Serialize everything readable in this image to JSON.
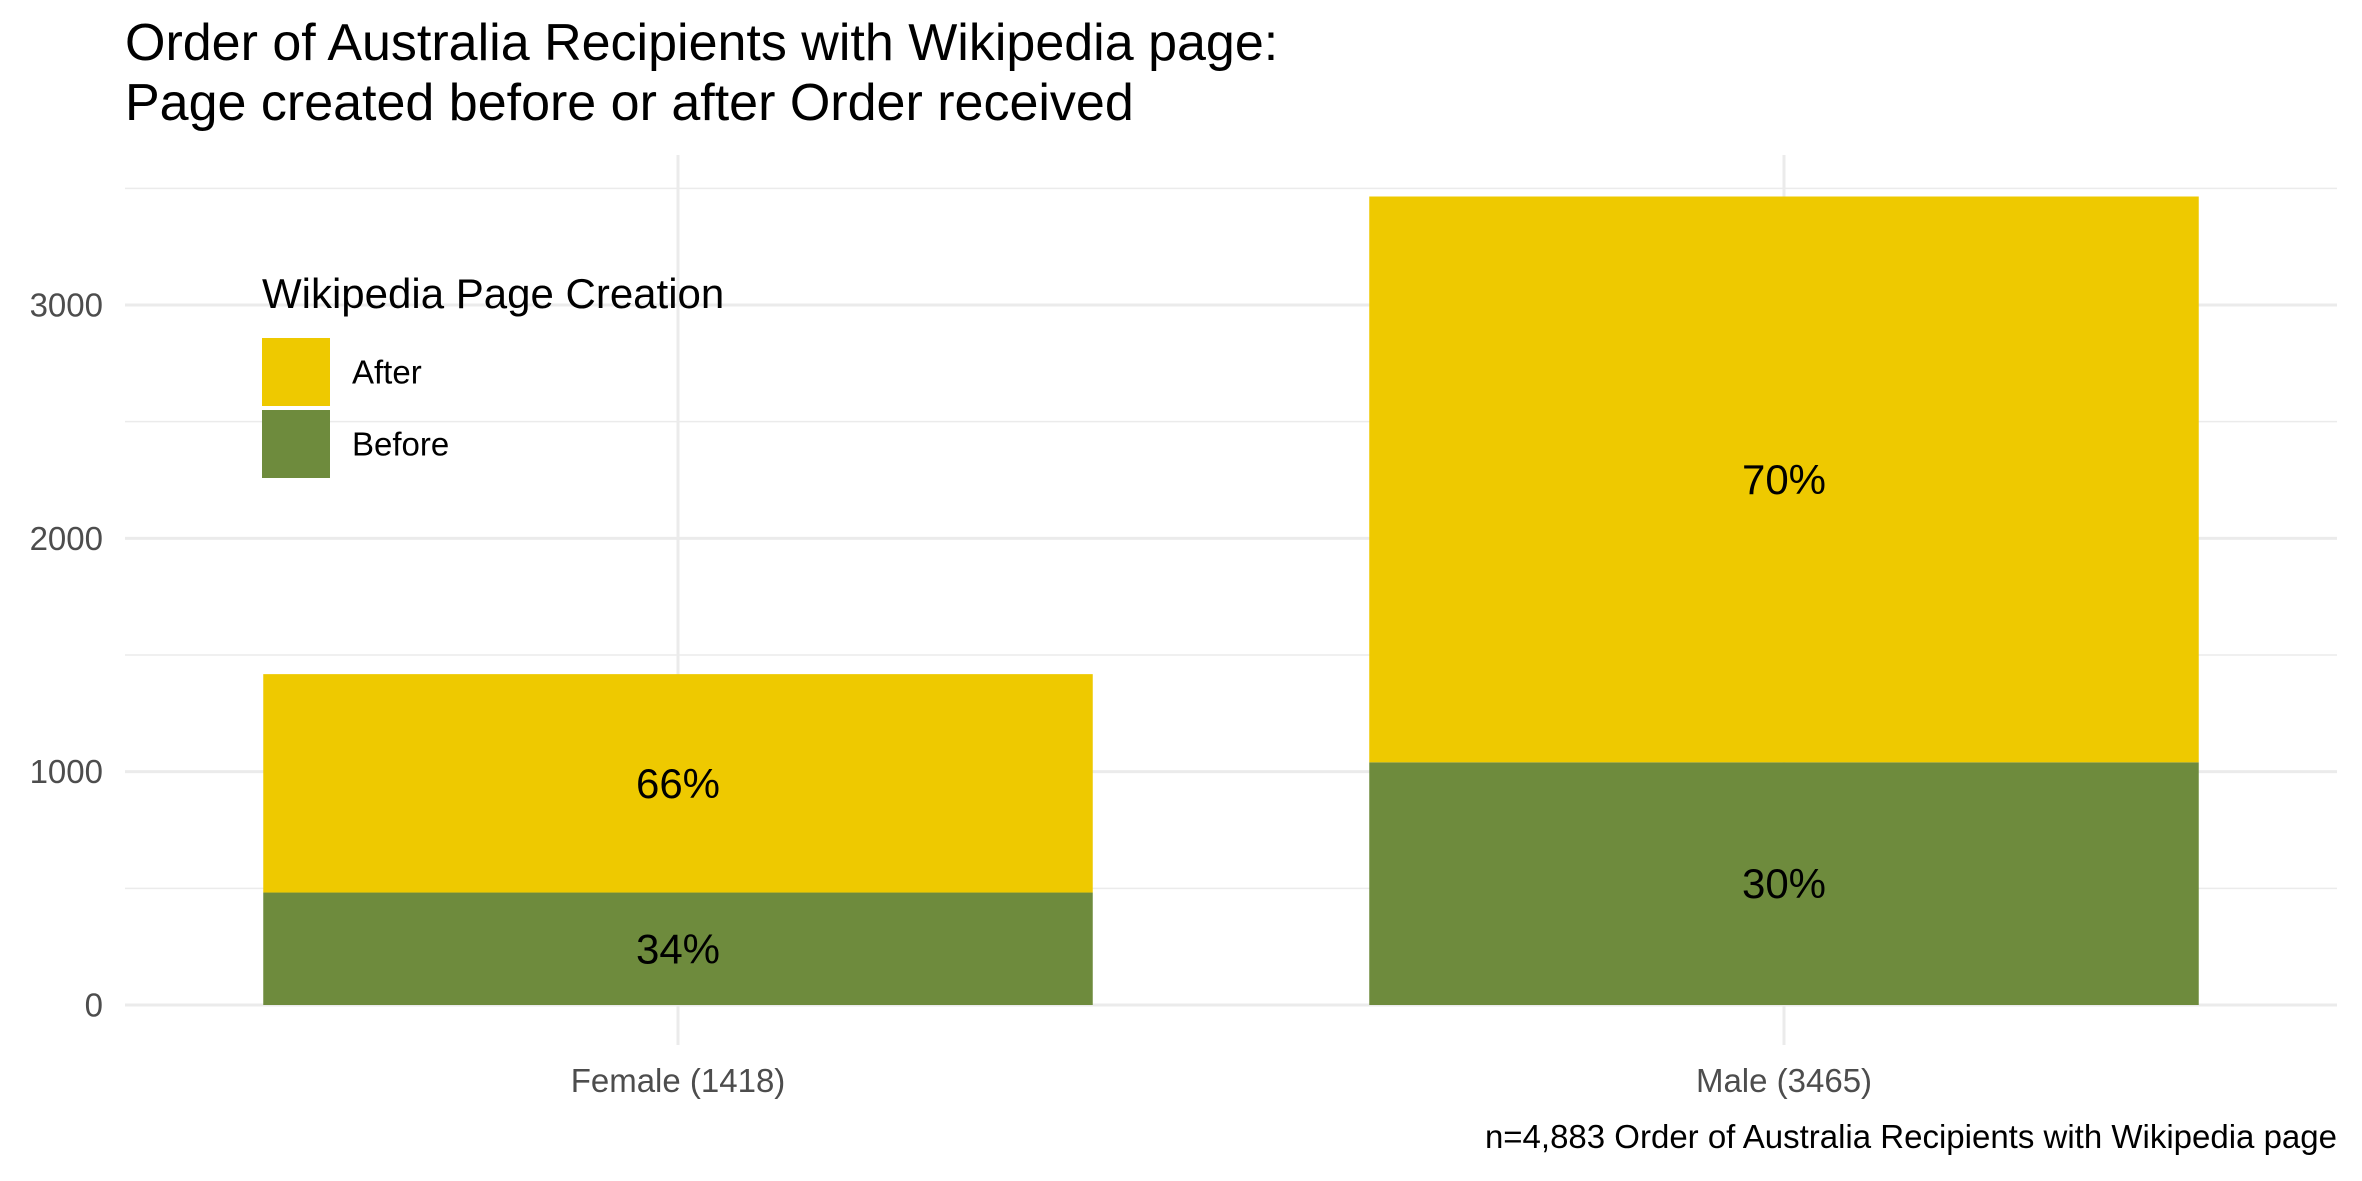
{
  "chart_data": {
    "type": "bar",
    "stacked": true,
    "title_lines": [
      "Order of Australia Recipients with Wikipedia page:",
      "Page created before or after Order received"
    ],
    "caption": "n=4,883 Order of Australia Recipients with Wikipedia page",
    "xlabel": "",
    "ylabel": "",
    "categories": [
      "Female (1418)",
      "Male (3465)"
    ],
    "series": [
      {
        "name": "Before",
        "color": "#6e8b3d",
        "values": [
          482,
          1040
        ],
        "labels": [
          "34%",
          "30%"
        ]
      },
      {
        "name": "After",
        "color": "#eec900",
        "values": [
          936,
          2425
        ],
        "labels": [
          "66%",
          "70%"
        ]
      }
    ],
    "legend": {
      "title": "Wikipedia Page Creation",
      "position": "top-left inside plot",
      "entries": [
        {
          "label": "After",
          "color": "#eec900"
        },
        {
          "label": "Before",
          "color": "#6e8b3d"
        }
      ]
    },
    "ylim": [
      0,
      3600
    ],
    "y_ticks": [
      0,
      1000,
      2000,
      3000
    ],
    "y_tick_labels": [
      "0",
      "1000",
      "2000",
      "3000"
    ],
    "y_minor_ticks": [
      500,
      1500,
      2500,
      3500
    ],
    "grid": true,
    "background": "#ffffff",
    "grid_color": "#ebebeb"
  }
}
